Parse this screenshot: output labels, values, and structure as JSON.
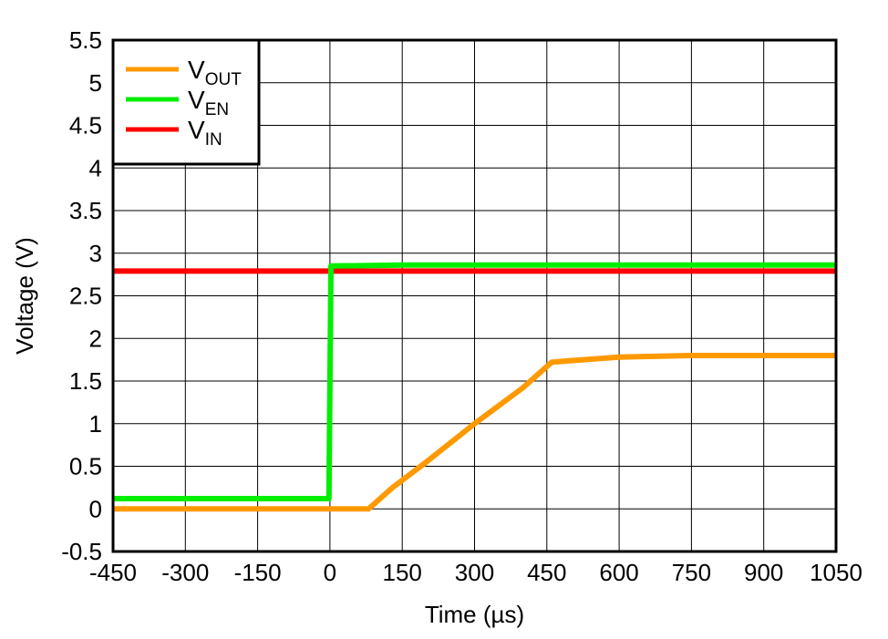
{
  "chart_data": {
    "type": "line",
    "xlabel": "Time (µs)",
    "ylabel": "Voltage (V)",
    "xlim": [
      -450,
      1050
    ],
    "ylim": [
      -0.5,
      5.5
    ],
    "x_ticks": [
      "-450",
      "-300",
      "-150",
      "0",
      "150",
      "300",
      "450",
      "600",
      "750",
      "900",
      "1050"
    ],
    "y_ticks": [
      "-0.5",
      "0",
      "0.5",
      "1",
      "1.5",
      "2",
      "2.5",
      "3",
      "3.5",
      "4",
      "4.5",
      "5",
      "5.5"
    ],
    "grid": true,
    "legend_position": "top-left",
    "series": [
      {
        "name": "V_OUT",
        "label_main": "V",
        "label_sub": "OUT",
        "color": "#ff9900",
        "x": [
          -450,
          80,
          130,
          200,
          300,
          400,
          460,
          500,
          600,
          750,
          900,
          1050
        ],
        "y": [
          0.0,
          0.0,
          0.25,
          0.55,
          1.0,
          1.42,
          1.72,
          1.74,
          1.78,
          1.8,
          1.8,
          1.8
        ]
      },
      {
        "name": "V_EN",
        "label_main": "V",
        "label_sub": "EN",
        "color": "#00ee00",
        "x": [
          -450,
          -2,
          0,
          2,
          150,
          450,
          750,
          1050
        ],
        "y": [
          0.12,
          0.12,
          1.5,
          2.85,
          2.86,
          2.86,
          2.86,
          2.86
        ]
      },
      {
        "name": "V_IN",
        "label_main": "V",
        "label_sub": "IN",
        "color": "#ff0000",
        "x": [
          -450,
          -150,
          0,
          150,
          450,
          750,
          1050
        ],
        "y": [
          2.79,
          2.79,
          2.79,
          2.79,
          2.79,
          2.79,
          2.79
        ]
      }
    ]
  }
}
